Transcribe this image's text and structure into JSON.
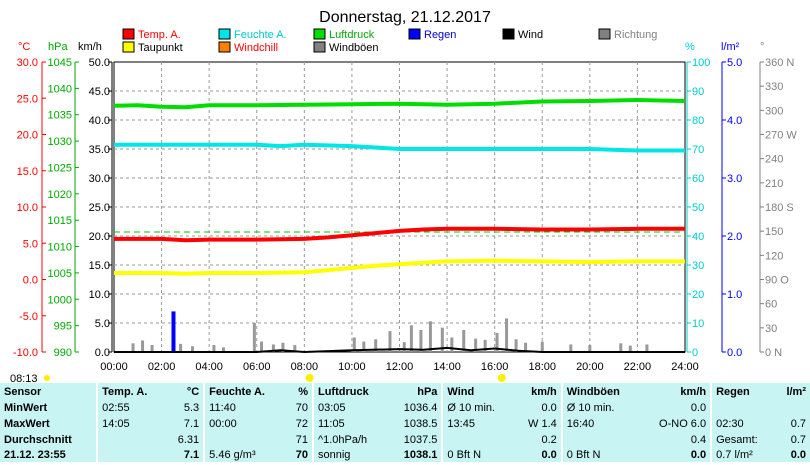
{
  "title": "Donnerstag, 21.12.2017",
  "axis_units": {
    "temp": "°C",
    "pressure": "hPa",
    "wind": "km/h",
    "humidity": "%",
    "rain": "l/m²",
    "direction": "°"
  },
  "legend": [
    {
      "label": "Temp. A.",
      "color": "#ff0000"
    },
    {
      "label": "Feuchte A.",
      "color": "#00e5e5"
    },
    {
      "label": "Luftdruck",
      "color": "#00dd00"
    },
    {
      "label": "Regen",
      "color": "#0000ff"
    },
    {
      "label": "Wind",
      "color": "#000000"
    },
    {
      "label": "Richtung",
      "color": "#808080"
    },
    {
      "label": "Taupunkt",
      "color": "#ffff00"
    },
    {
      "label": "Windchill",
      "color": "#ff8000"
    },
    {
      "label": "Windböen",
      "color": "#808080"
    }
  ],
  "colors": {
    "temp": "#ff0000",
    "humidity": "#00e5e5",
    "pressure": "#00dd00",
    "rain": "#0000ff",
    "dewpoint": "#ffff00",
    "gust": "#999999",
    "grid": "#999999"
  },
  "sunrise_time": "08:13",
  "chart_data": {
    "type": "line",
    "title": "Donnerstag, 21.12.2017",
    "x": [
      "00:00",
      "02:00",
      "04:00",
      "06:00",
      "08:00",
      "10:00",
      "12:00",
      "14:00",
      "16:00",
      "18:00",
      "20:00",
      "22:00",
      "24:00"
    ],
    "xlim": [
      0,
      24
    ],
    "grid": true,
    "axes": {
      "temp": {
        "ylim": [
          -10,
          30
        ],
        "ticks": [
          "30.0",
          "25.0",
          "20.0",
          "15.0",
          "10.0",
          "5.0",
          "0.0",
          "-5.0",
          "-10.0"
        ]
      },
      "pressure": {
        "ylim": [
          990,
          1045
        ],
        "ticks": [
          "1045",
          "1040",
          "1035",
          "1030",
          "1025",
          "1020",
          "1015",
          "1010",
          "1005",
          "1000",
          "995",
          "990"
        ]
      },
      "wind": {
        "ylim": [
          0,
          50
        ],
        "ticks": [
          "50.0",
          "45.0",
          "40.0",
          "35.0",
          "30.0",
          "25.0",
          "20.0",
          "15.0",
          "10.0",
          "5.0",
          "0.0"
        ]
      },
      "humidity": {
        "ylim": [
          0,
          100
        ],
        "ticks": [
          "100",
          "90",
          "80",
          "70",
          "60",
          "50",
          "40",
          "30",
          "20",
          "10",
          "0"
        ]
      },
      "rain": {
        "ylim": [
          0,
          5
        ],
        "ticks": [
          "5.0",
          "4.0",
          "3.0",
          "2.0",
          "1.0",
          "0.0"
        ]
      },
      "direction": {
        "ylim": [
          0,
          360
        ],
        "ticks": [
          "360 N",
          "330",
          "300",
          "270 W",
          "240",
          "210",
          "180 S",
          "150",
          "120",
          "90 O",
          "60",
          "30",
          "0 N"
        ]
      }
    },
    "series": [
      {
        "name": "Temp. A.",
        "axis": "temp",
        "x": [
          0,
          2,
          3,
          4,
          6,
          8,
          9,
          10,
          11,
          12,
          13,
          14,
          16,
          18,
          20,
          22,
          24
        ],
        "y": [
          5.6,
          5.6,
          5.4,
          5.5,
          5.5,
          5.6,
          5.8,
          6.1,
          6.4,
          6.7,
          6.9,
          7.0,
          7.0,
          6.9,
          6.9,
          7.0,
          7.0
        ]
      },
      {
        "name": "Taupunkt",
        "axis": "temp",
        "x": [
          0,
          2,
          3,
          4,
          6,
          8,
          9,
          10,
          11,
          12,
          13,
          14,
          16,
          18,
          20,
          22,
          24
        ],
        "y": [
          0.9,
          0.9,
          0.8,
          0.9,
          0.9,
          1.0,
          1.3,
          1.6,
          1.9,
          2.1,
          2.3,
          2.5,
          2.6,
          2.5,
          2.4,
          2.5,
          2.5
        ]
      },
      {
        "name": "Feuchte A.",
        "axis": "humidity",
        "x": [
          0,
          2,
          4,
          6,
          7,
          8,
          10,
          12,
          14,
          16,
          18,
          20,
          22,
          24
        ],
        "y": [
          71.5,
          71.5,
          71.5,
          71.5,
          71,
          71.5,
          71,
          70,
          70,
          70,
          70,
          70,
          69.5,
          69.5
        ]
      },
      {
        "name": "Luftdruck",
        "axis": "pressure",
        "x": [
          0,
          1,
          2,
          3,
          4,
          6,
          8,
          10,
          12,
          14,
          16,
          18,
          20,
          22,
          24
        ],
        "y": [
          1036.7,
          1036.8,
          1036.5,
          1036.4,
          1036.8,
          1036.8,
          1036.9,
          1037.0,
          1037.1,
          1036.9,
          1037.1,
          1037.5,
          1037.6,
          1037.8,
          1037.6
        ]
      },
      {
        "name": "Regen",
        "axis": "rain",
        "x": [
          2.45,
          2.5,
          2.55
        ],
        "y": [
          0,
          0.7,
          0
        ]
      },
      {
        "name": "Windböen",
        "axis": "wind",
        "x": [
          0.8,
          1.2,
          1.6,
          2.8,
          3.3,
          4.2,
          4.6,
          5.9,
          6.2,
          6.7,
          7.1,
          7.6,
          10.1,
          10.5,
          11.0,
          11.6,
          12.2,
          12.5,
          12.9,
          13.3,
          13.8,
          14.2,
          14.7,
          15.2,
          15.6,
          16.1,
          16.5,
          16.9,
          17.3,
          18.0,
          19.2,
          20.0,
          21.3,
          21.7,
          22.4
        ],
        "y": [
          1.5,
          2.0,
          1.2,
          1.4,
          1.0,
          1.2,
          0.8,
          5.0,
          1.8,
          1.3,
          1.6,
          1.2,
          2.5,
          1.8,
          2.2,
          3.6,
          1.7,
          4.6,
          3.8,
          5.3,
          4.2,
          2.5,
          3.8,
          2.3,
          2.1,
          3.3,
          5.8,
          2.2,
          1.6,
          1.8,
          1.3,
          1.2,
          1.5,
          1.1,
          1.3
        ]
      },
      {
        "name": "Wind",
        "axis": "wind",
        "x": [
          0,
          6,
          7,
          8,
          10,
          12,
          13,
          14,
          15,
          16,
          17,
          18,
          19,
          24
        ],
        "y": [
          0,
          0,
          0.3,
          0,
          0.3,
          0.5,
          0.4,
          0.7,
          0.3,
          0.6,
          0.2,
          0,
          0,
          0
        ]
      }
    ]
  },
  "stats": {
    "headers": [
      "Sensor",
      "Temp. A.",
      "°C",
      "Feuchte A.",
      "%",
      "Luftdruck",
      "hPa",
      "Wind",
      "km/h",
      "Windböen",
      "km/h",
      "Regen",
      "l/m²"
    ],
    "rows": [
      {
        "label": "MinWert",
        "cells": [
          "02:55",
          "5.3",
          "11:40",
          "70",
          "03:05",
          "1036.4",
          "Ø 10 min.",
          "0.0",
          "Ø 10 min.",
          "0.0",
          "",
          ""
        ]
      },
      {
        "label": "MaxWert",
        "cells": [
          "14:05",
          "7.1",
          "00:00",
          "72",
          "11:05",
          "1038.5",
          "13:45",
          "W 1.4",
          "16:40",
          "O-NO 6.0",
          "02:30",
          "0.7"
        ]
      },
      {
        "label": "Durchschnitt",
        "cells": [
          "",
          "6.31",
          "",
          "71",
          "^1.0hPa/h",
          "1037.5",
          "",
          "0.2",
          "",
          "0.4",
          "Gesamt:",
          "0.7"
        ]
      },
      {
        "label": "21.12. 23:55",
        "cells": [
          "",
          "7.1",
          "5.46 g/m³",
          "70",
          "sonnig",
          "1038.1",
          "0 Bft N",
          "0.0",
          "0 Bft N",
          "0.0",
          "0.7 l/m²",
          "0.0"
        ]
      }
    ]
  }
}
